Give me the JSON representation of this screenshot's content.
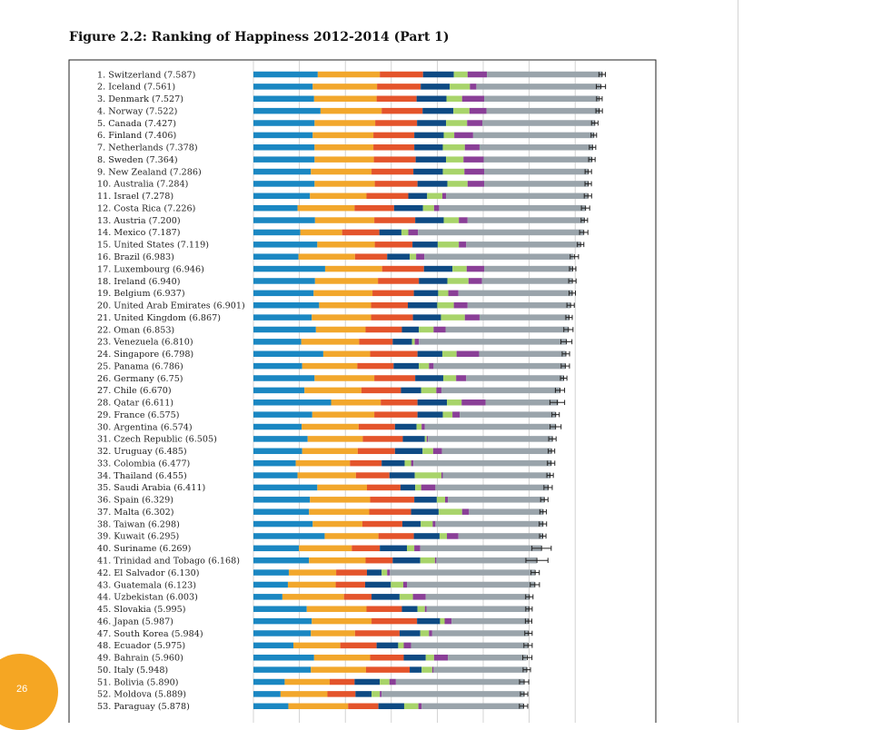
{
  "figure": {
    "title": "Figure 2.2: Ranking of Happiness 2012-2014 (Part 1)"
  },
  "page": {
    "number": "26"
  },
  "colors": {
    "dystopia_residual": "#9aa4ab",
    "gdp": "#1a87c2",
    "social_support": "#f2a72c",
    "life_expectancy": "#e4542b",
    "freedom": "#0e4a83",
    "generosity": "#a8d46a",
    "corruption": "#8a3f97",
    "page_badge": "#f5a623",
    "gridline": "#c9c9c9",
    "error_bar": "#222222"
  },
  "chart_data": {
    "type": "bar",
    "orientation": "horizontal",
    "stacked": true,
    "title": "Figure 2.2: Ranking of Happiness 2012-2014 (Part 1)",
    "xlim": [
      0,
      7.9
    ],
    "grid": true,
    "categories": [
      "1. Switzerland (7.587)",
      "2. Iceland (7.561)",
      "3. Denmark (7.527)",
      "4. Norway (7.522)",
      "5. Canada (7.427)",
      "6. Finland (7.406)",
      "7. Netherlands (7.378)",
      "8. Sweden (7.364)",
      "9. New Zealand (7.286)",
      "10. Australia (7.284)",
      "11. Israel (7.278)",
      "12. Costa Rica (7.226)",
      "13. Austria (7.200)",
      "14. Mexico (7.187)",
      "15. United States (7.119)",
      "16. Brazil (6.983)",
      "17. Luxembourg (6.946)",
      "18. Ireland (6.940)",
      "19. Belgium (6.937)",
      "20. United Arab Emirates (6.901)",
      "21. United Kingdom (6.867)",
      "22. Oman (6.853)",
      "23. Venezuela (6.810)",
      "24. Singapore (6.798)",
      "25. Panama (6.786)",
      "26. Germany (6.75)",
      "27. Chile (6.670)",
      "28. Qatar (6.611)",
      "29. France (6.575)",
      "30. Argentina (6.574)",
      "31. Czech Republic (6.505)",
      "32. Uruguay (6.485)",
      "33. Colombia (6.477)",
      "34. Thailand (6.455)",
      "35. Saudi Arabia (6.411)",
      "36. Spain (6.329)",
      "37. Malta (6.302)",
      "38. Taiwan (6.298)",
      "39. Kuwait (6.295)",
      "40. Suriname (6.269)",
      "41. Trinidad and Tobago (6.168)",
      "42. El Salvador (6.130)",
      "43. Guatemala (6.123)",
      "44. Uzbekistan (6.003)",
      "45. Slovakia (5.995)",
      "46. Japan (5.987)",
      "47. South Korea (5.984)",
      "48. Ecuador (5.975)",
      "49. Bahrain (5.960)",
      "50. Italy (5.948)",
      "51. Bolivia (5.890)",
      "52. Moldova (5.889)",
      "53. Paraguay (5.878)"
    ],
    "scores": [
      7.587,
      7.561,
      7.527,
      7.522,
      7.427,
      7.406,
      7.378,
      7.364,
      7.286,
      7.284,
      7.278,
      7.226,
      7.2,
      7.187,
      7.119,
      6.983,
      6.946,
      6.94,
      6.937,
      6.901,
      6.867,
      6.853,
      6.81,
      6.798,
      6.786,
      6.75,
      6.67,
      6.611,
      6.575,
      6.574,
      6.505,
      6.485,
      6.477,
      6.455,
      6.411,
      6.329,
      6.302,
      6.298,
      6.295,
      6.269,
      6.168,
      6.13,
      6.123,
      6.003,
      5.995,
      5.987,
      5.984,
      5.975,
      5.96,
      5.948,
      5.89,
      5.889,
      5.878
    ],
    "error": [
      0.07,
      0.1,
      0.06,
      0.07,
      0.07,
      0.06,
      0.07,
      0.07,
      0.07,
      0.07,
      0.08,
      0.09,
      0.07,
      0.09,
      0.07,
      0.09,
      0.07,
      0.08,
      0.07,
      0.08,
      0.07,
      0.1,
      0.12,
      0.08,
      0.09,
      0.07,
      0.1,
      0.16,
      0.08,
      0.12,
      0.08,
      0.07,
      0.08,
      0.07,
      0.09,
      0.08,
      0.07,
      0.08,
      0.07,
      0.21,
      0.24,
      0.09,
      0.1,
      0.08,
      0.07,
      0.07,
      0.08,
      0.09,
      0.1,
      0.08,
      0.1,
      0.08,
      0.09
    ],
    "series": [
      {
        "key": "gdp",
        "values": [
          1.4,
          1.29,
          1.32,
          1.46,
          1.33,
          1.29,
          1.33,
          1.33,
          1.25,
          1.33,
          1.23,
          0.96,
          1.34,
          1.02,
          1.39,
          0.98,
          1.56,
          1.34,
          1.31,
          1.43,
          1.27,
          1.36,
          1.04,
          1.52,
          1.06,
          1.33,
          1.11,
          1.69,
          1.28,
          1.05,
          1.18,
          1.06,
          0.92,
          0.96,
          1.39,
          1.23,
          1.21,
          1.29,
          1.55,
          0.99,
          1.21,
          0.77,
          0.75,
          0.63,
          1.16,
          1.27,
          1.25,
          0.87,
          1.32,
          1.25,
          0.68,
          0.59,
          0.76
        ]
      },
      {
        "key": "social_support",
        "values": [
          1.35,
          1.4,
          1.36,
          1.33,
          1.32,
          1.32,
          1.28,
          1.29,
          1.32,
          1.31,
          1.23,
          1.24,
          1.29,
          0.91,
          1.25,
          1.23,
          1.24,
          1.37,
          1.28,
          1.13,
          1.29,
          1.08,
          1.26,
          1.02,
          1.2,
          1.3,
          1.24,
          1.08,
          1.35,
          1.24,
          1.2,
          1.21,
          1.18,
          1.27,
          1.08,
          1.31,
          1.31,
          1.08,
          1.17,
          1.15,
          1.23,
          1.03,
          1.04,
          1.34,
          1.3,
          1.3,
          0.96,
          1.02,
          1.22,
          1.2,
          0.98,
          1.02,
          1.3
        ]
      },
      {
        "key": "life_expectancy",
        "values": [
          0.94,
          0.95,
          0.87,
          0.89,
          0.91,
          0.89,
          0.89,
          0.91,
          0.91,
          0.93,
          0.91,
          0.86,
          0.89,
          0.81,
          0.82,
          0.7,
          0.91,
          0.89,
          0.9,
          0.8,
          0.91,
          0.79,
          0.73,
          1.03,
          0.79,
          0.89,
          0.86,
          0.8,
          0.94,
          0.79,
          0.87,
          0.81,
          0.69,
          0.73,
          0.73,
          0.96,
          0.91,
          0.87,
          0.77,
          0.61,
          0.59,
          0.67,
          0.64,
          0.6,
          0.77,
          0.99,
          0.97,
          0.79,
          0.73,
          0.95,
          0.54,
          0.61,
          0.66
        ]
      },
      {
        "key": "freedom",
        "values": [
          0.67,
          0.63,
          0.65,
          0.67,
          0.63,
          0.64,
          0.62,
          0.66,
          0.64,
          0.65,
          0.41,
          0.63,
          0.62,
          0.48,
          0.55,
          0.49,
          0.62,
          0.62,
          0.53,
          0.64,
          0.61,
          0.37,
          0.42,
          0.54,
          0.55,
          0.61,
          0.44,
          0.64,
          0.55,
          0.47,
          0.48,
          0.6,
          0.5,
          0.55,
          0.32,
          0.49,
          0.6,
          0.4,
          0.56,
          0.59,
          0.6,
          0.32,
          0.56,
          0.61,
          0.34,
          0.5,
          0.45,
          0.47,
          0.48,
          0.26,
          0.55,
          0.35,
          0.56
        ]
      },
      {
        "key": "generosity",
        "values": [
          0.3,
          0.44,
          0.34,
          0.35,
          0.46,
          0.23,
          0.48,
          0.38,
          0.47,
          0.44,
          0.33,
          0.24,
          0.33,
          0.15,
          0.46,
          0.14,
          0.31,
          0.46,
          0.22,
          0.36,
          0.52,
          0.32,
          0.06,
          0.31,
          0.22,
          0.28,
          0.33,
          0.32,
          0.21,
          0.11,
          0.04,
          0.23,
          0.14,
          0.58,
          0.13,
          0.18,
          0.51,
          0.26,
          0.16,
          0.16,
          0.32,
          0.12,
          0.27,
          0.29,
          0.16,
          0.1,
          0.19,
          0.12,
          0.18,
          0.23,
          0.21,
          0.18,
          0.31
        ]
      },
      {
        "key": "corruption",
        "values": [
          0.42,
          0.14,
          0.48,
          0.37,
          0.33,
          0.41,
          0.32,
          0.44,
          0.43,
          0.36,
          0.08,
          0.11,
          0.19,
          0.21,
          0.16,
          0.18,
          0.38,
          0.29,
          0.22,
          0.3,
          0.32,
          0.26,
          0.09,
          0.49,
          0.1,
          0.22,
          0.11,
          0.52,
          0.16,
          0.07,
          0.03,
          0.19,
          0.05,
          0.03,
          0.31,
          0.06,
          0.15,
          0.06,
          0.25,
          0.13,
          0.03,
          0.06,
          0.08,
          0.28,
          0.04,
          0.15,
          0.07,
          0.16,
          0.3,
          0.03,
          0.14,
          0.04,
          0.07
        ]
      },
      {
        "key": "dystopia_residual",
        "values": [
          2.51,
          2.7,
          2.49,
          2.47,
          2.45,
          2.62,
          2.47,
          2.35,
          2.26,
          2.27,
          3.08,
          3.18,
          2.54,
          3.6,
          2.48,
          3.24,
          1.92,
          1.96,
          2.48,
          2.24,
          1.95,
          2.67,
          3.21,
          1.88,
          2.87,
          2.12,
          2.57,
          1.58,
          2.08,
          2.85,
          2.71,
          2.38,
          3.0,
          2.34,
          2.46,
          2.1,
          1.61,
          2.34,
          1.84,
          2.64,
          2.19,
          3.16,
          2.78,
          2.25,
          2.23,
          1.67,
          2.09,
          2.54,
          1.71,
          2.03,
          2.78,
          3.09,
          2.21
        ]
      }
    ]
  }
}
